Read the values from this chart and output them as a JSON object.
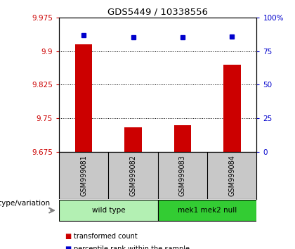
{
  "title": "GDS5449 / 10338556",
  "samples": [
    "GSM999081",
    "GSM999082",
    "GSM999083",
    "GSM999084"
  ],
  "transformed_counts": [
    9.915,
    9.73,
    9.735,
    9.87
  ],
  "percentile_ranks": [
    87,
    85,
    85,
    86
  ],
  "ylim_left": [
    9.675,
    9.975
  ],
  "ylim_right": [
    0,
    100
  ],
  "yticks_left": [
    9.675,
    9.75,
    9.825,
    9.9,
    9.975
  ],
  "yticks_right": [
    0,
    25,
    50,
    75,
    100
  ],
  "ytick_labels_right": [
    "0",
    "25",
    "50",
    "75",
    "100%"
  ],
  "bar_color": "#cc0000",
  "marker_color": "#0000cc",
  "grid_lines": [
    9.9,
    9.825,
    9.75
  ],
  "groups": [
    {
      "label": "wild type",
      "samples": [
        0,
        1
      ],
      "color": "#b3f0b3"
    },
    {
      "label": "mek1 mek2 null",
      "samples": [
        2,
        3
      ],
      "color": "#33cc33"
    }
  ],
  "group_label": "genotype/variation",
  "legend_bar_label": "transformed count",
  "legend_marker_label": "percentile rank within the sample",
  "bar_width": 0.35,
  "background_color": "#ffffff",
  "plot_bg_color": "#ffffff",
  "sample_label_bg": "#c8c8c8"
}
